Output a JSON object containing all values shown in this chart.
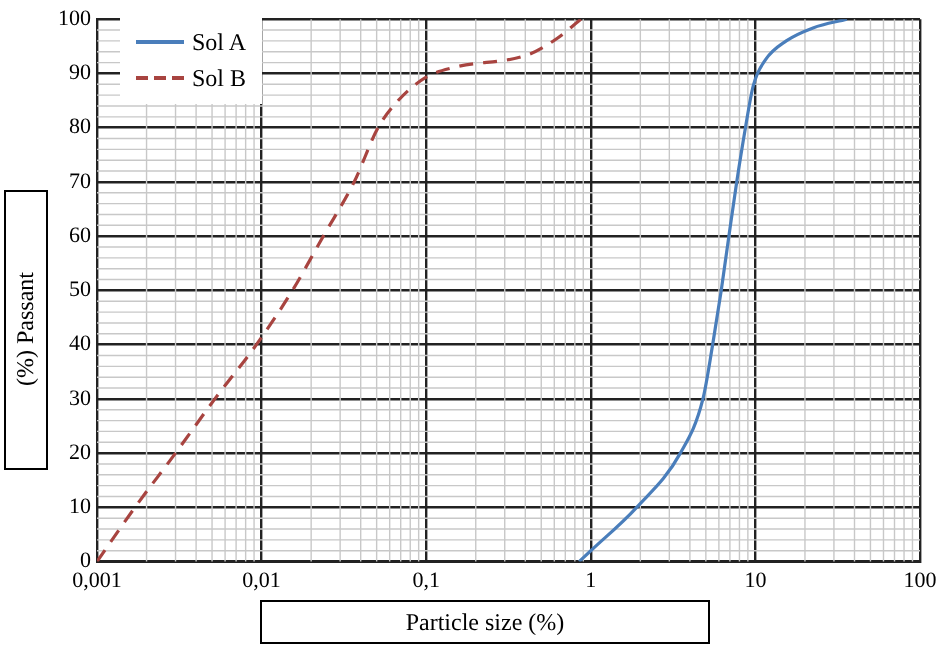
{
  "chart_data": {
    "type": "line",
    "xlabel": "Particle size (%)",
    "ylabel": "(%) Passant",
    "log": "x",
    "grid": true,
    "legend": "top left",
    "marker": "none",
    "xlim": [
      0.001,
      100
    ],
    "xticks": [
      {
        "value": 0.001,
        "label": "0,001"
      },
      {
        "value": 0.01,
        "label": "0,01"
      },
      {
        "value": 0.1,
        "label": "0,1"
      },
      1,
      10,
      100
    ],
    "ylim": [
      0,
      100
    ],
    "yticks": [
      0,
      10,
      20,
      30,
      40,
      50,
      60,
      70,
      80,
      90,
      100
    ],
    "series": [
      {
        "name": "Sol A",
        "color": "#4a7ebb",
        "line_style": "solid",
        "x": [
          0.85,
          1,
          1.9,
          3.5,
          4.8,
          5.5,
          6.2,
          6.9,
          7.7,
          8.7,
          9.7,
          11.5,
          15.4,
          22.4,
          36
        ],
        "values": [
          0,
          2,
          10,
          20,
          30,
          40,
          50,
          60,
          70,
          80,
          87.7,
          92.5,
          96,
          98.4,
          100
        ]
      },
      {
        "name": "Sol B",
        "color": "#a84440",
        "line_style": "dashed",
        "x": [
          0.001,
          0.0017,
          0.003,
          0.0052,
          0.0093,
          0.0154,
          0.0237,
          0.0365,
          0.051,
          0.068,
          0.1,
          0.147,
          0.42,
          0.62,
          0.87
        ],
        "values": [
          0,
          10,
          20,
          30,
          40,
          50,
          60,
          70,
          80,
          85.1,
          89.3,
          91.1,
          93.5,
          96.4,
          100
        ]
      }
    ]
  }
}
